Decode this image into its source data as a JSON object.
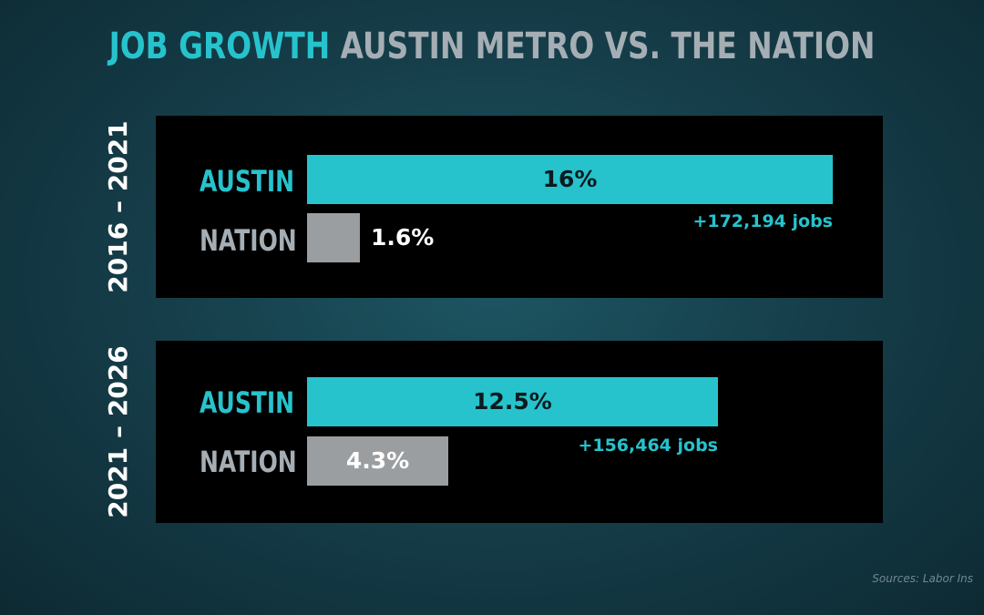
{
  "title": {
    "highlight": "JOB GROWTH",
    "rest": "AUSTIN METRO VS. THE NATION"
  },
  "colors": {
    "austin": "#26c3cd",
    "nation": "#9b9ea0",
    "austin_label": "#26c3cd",
    "nation_label": "#a5aeb4"
  },
  "source": "Sources: Labor Ins",
  "chart_data": [
    {
      "type": "bar",
      "period": "2016 – 2021",
      "categories": [
        "AUSTIN",
        "NATION"
      ],
      "values": [
        16,
        1.6
      ],
      "value_labels": [
        "16%",
        "1.6%"
      ],
      "annotation": "+172,194 jobs",
      "xlim": [
        0,
        16
      ]
    },
    {
      "type": "bar",
      "period": "2021 – 2026",
      "categories": [
        "AUSTIN",
        "NATION"
      ],
      "values": [
        12.5,
        4.3
      ],
      "value_labels": [
        "12.5%",
        "4.3%"
      ],
      "annotation": "+156,464 jobs",
      "xlim": [
        0,
        16
      ]
    }
  ]
}
